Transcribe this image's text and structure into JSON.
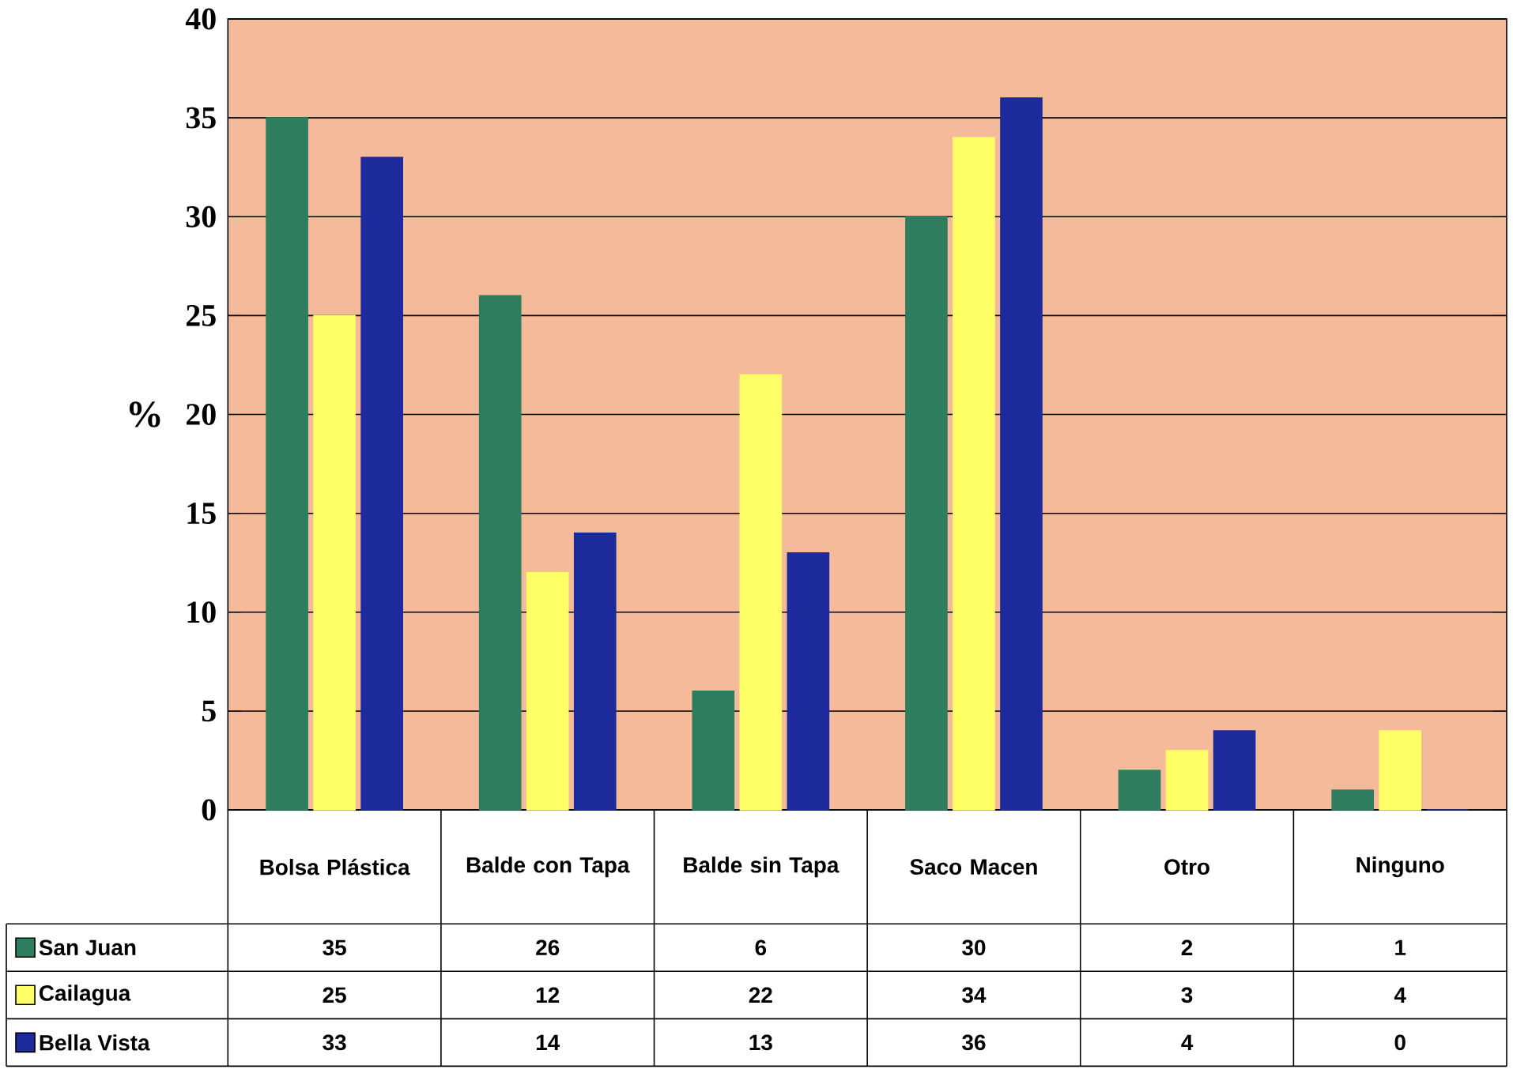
{
  "chart_data": {
    "type": "bar",
    "ylabel": "%",
    "categories": [
      "Bolsa Plástica",
      "Balde con Tapa",
      "Balde sin Tapa",
      "Saco Macen",
      "Otro",
      "Ninguno"
    ],
    "series": [
      {
        "name": "San Juan",
        "color": "#2e7d5e",
        "values": [
          35,
          26,
          6,
          30,
          2,
          1
        ]
      },
      {
        "name": "Cailagua",
        "color": "#ffff66",
        "values": [
          25,
          12,
          22,
          34,
          3,
          4
        ]
      },
      {
        "name": "Bella Vista",
        "color": "#1c2a9c",
        "values": [
          33,
          14,
          13,
          36,
          4,
          0
        ]
      }
    ],
    "ylim": [
      0,
      40
    ],
    "yticks": [
      0,
      5,
      10,
      15,
      20,
      25,
      30,
      35,
      40
    ],
    "grid": "y",
    "legend": "bottom left",
    "data_labels": true
  }
}
